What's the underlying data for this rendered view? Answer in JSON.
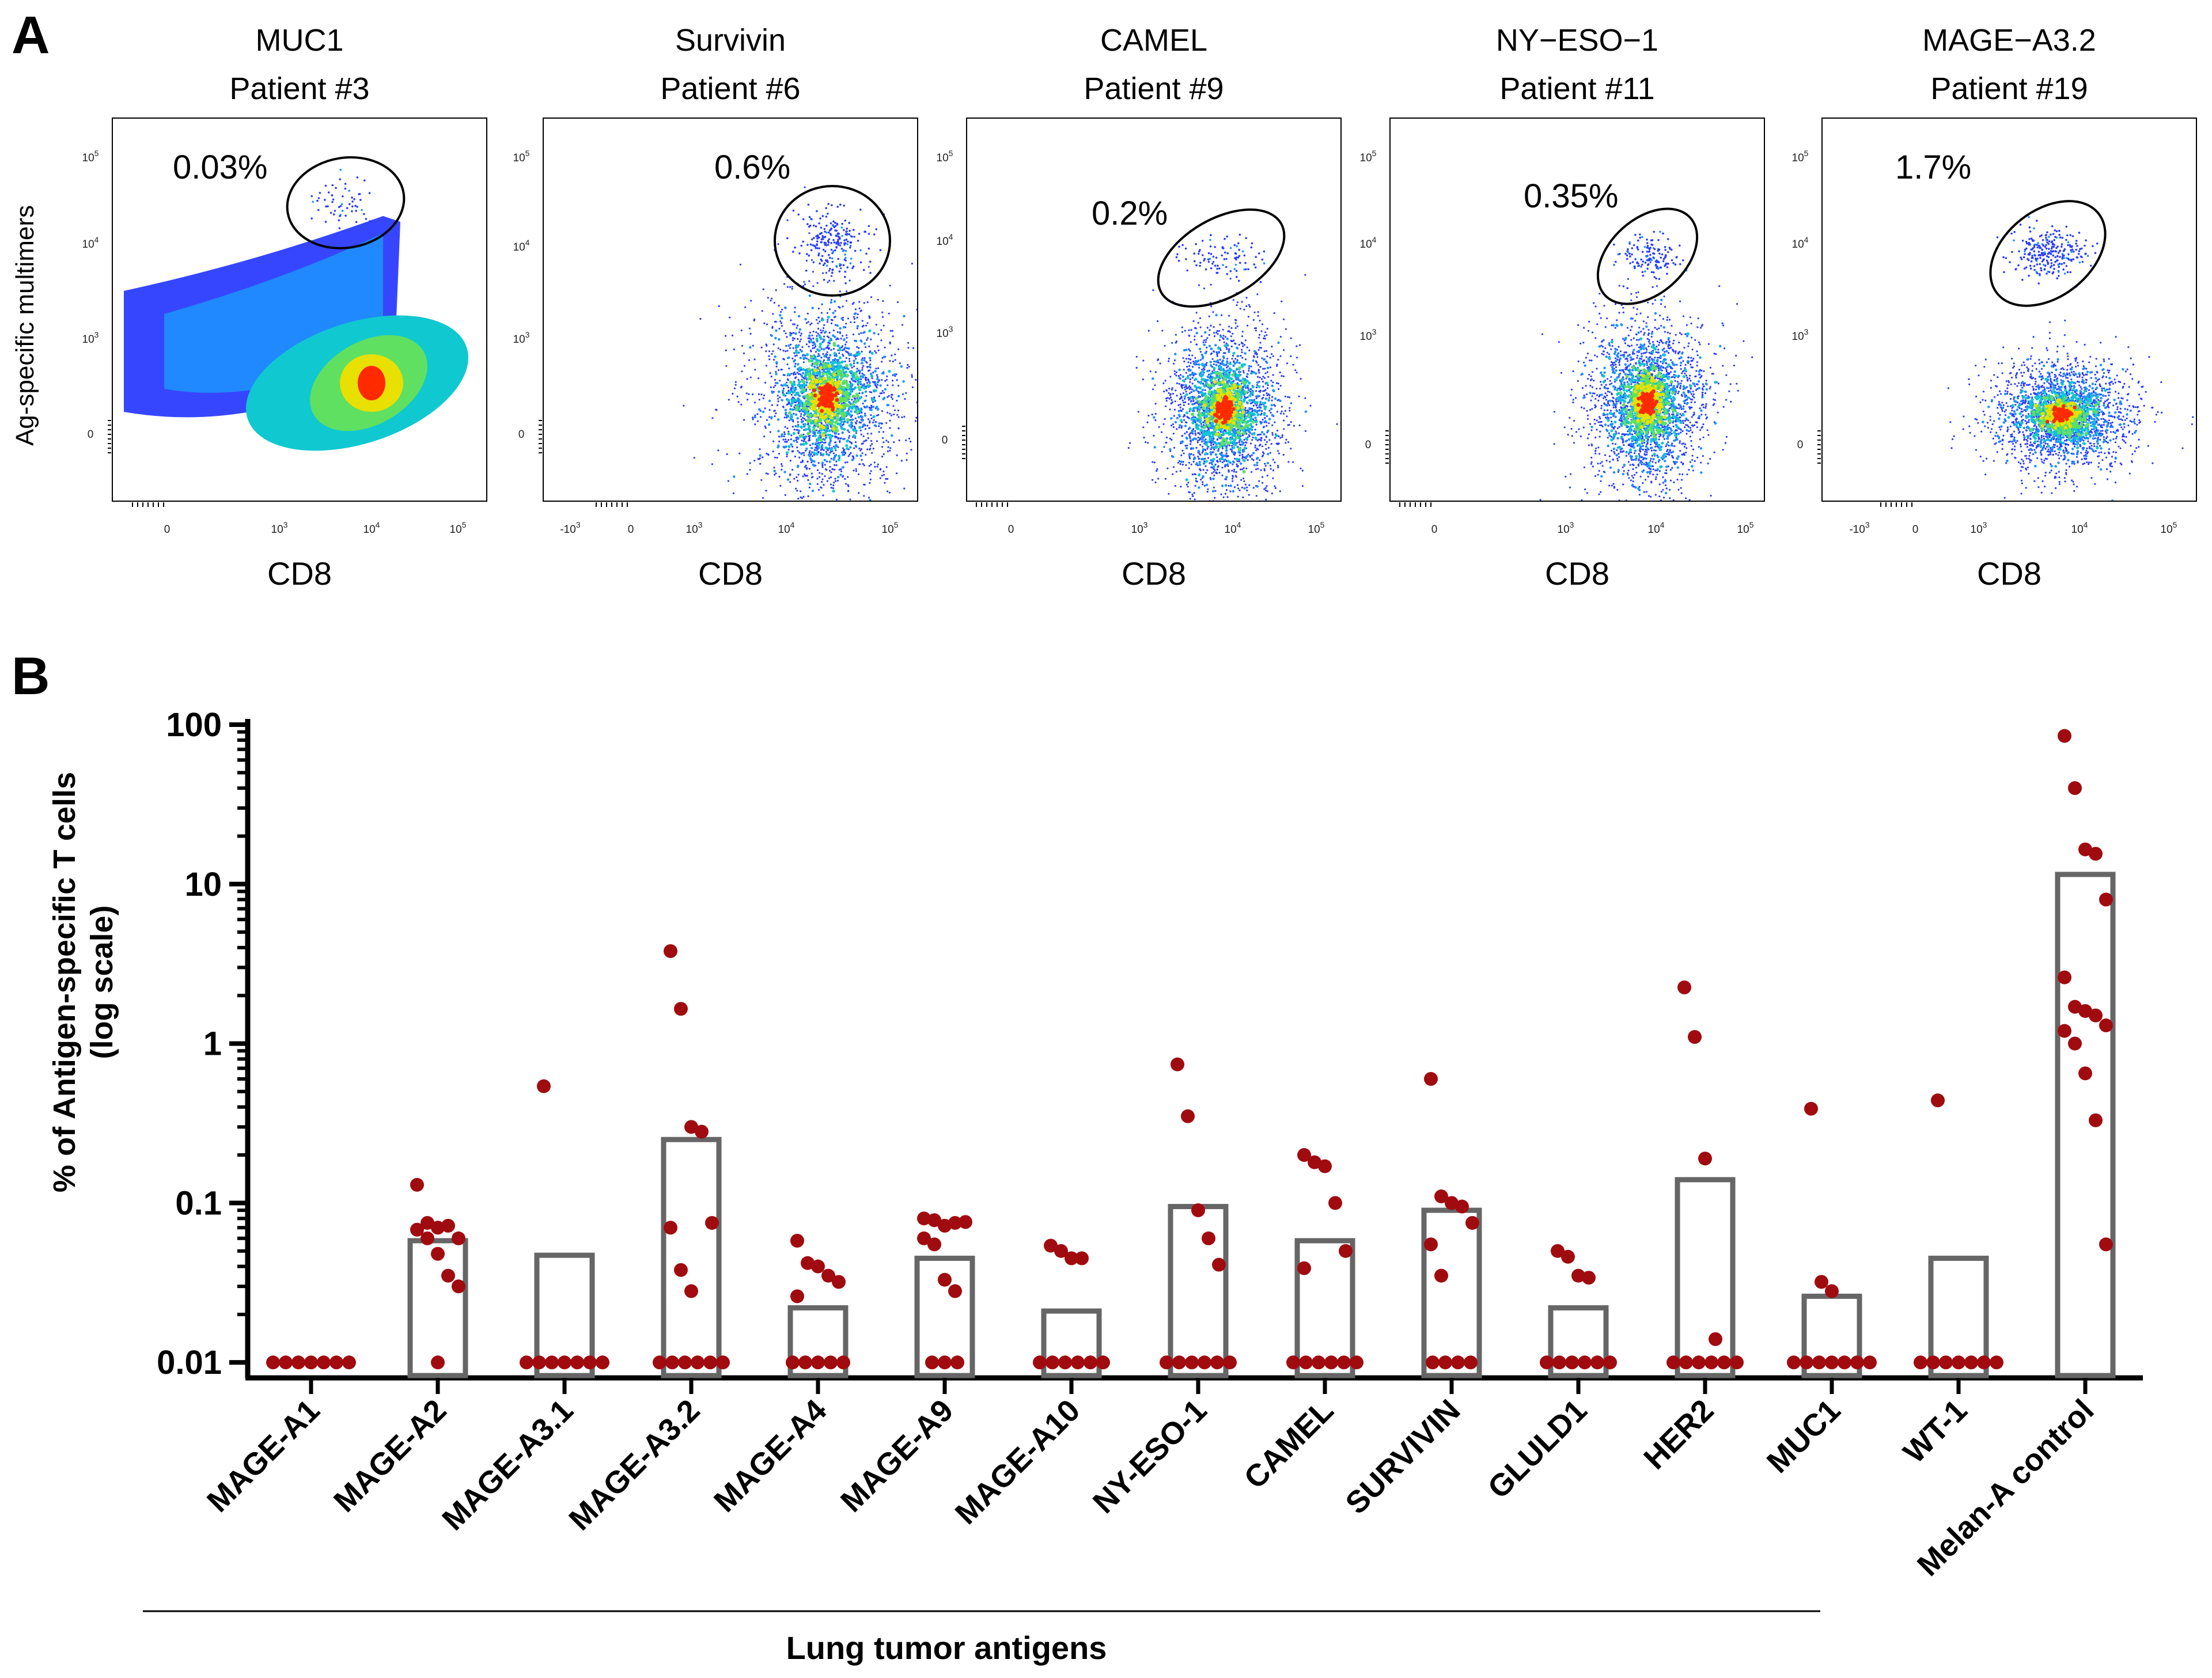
{
  "panel_a": {
    "letter": "A",
    "x_axis_label": "CD8",
    "y_axis_label": "Ag-specific multimers",
    "panels": [
      {
        "antigen": "MUC1",
        "patient": "Patient #3",
        "percent": "0.03%"
      },
      {
        "antigen": "Survivin",
        "patient": "Patient #6",
        "percent": "0.6%"
      },
      {
        "antigen": "CAMEL",
        "patient": "Patient #9",
        "percent": "0.2%"
      },
      {
        "antigen": "NY−ESO−1",
        "patient": "Patient #11",
        "percent": "0.35%"
      },
      {
        "antigen": "MAGE−A3.2",
        "patient": "Patient #19",
        "percent": "1.7%"
      }
    ],
    "tick_labels": {
      "e3": "10",
      "e4": "10",
      "e5": "10",
      "sup3": "3",
      "sup4": "4",
      "sup5": "5",
      "zero": "0",
      "neg": "-10"
    },
    "colors": {
      "low": "#2b3cff",
      "mid": "#10c8d0",
      "high": "#e8e000",
      "peak": "#ff2a00",
      "gate": "#000000"
    }
  },
  "panel_b": {
    "letter": "B",
    "group_label": "Lung tumor antigens"
  },
  "chart_data": {
    "type": "bar",
    "title": "",
    "ylabel_line1": "% of Antigen-specific T cells",
    "ylabel_line2": "(log scale)",
    "xlabel": "",
    "yscale": "log",
    "ylim": [
      0.008,
      100
    ],
    "yticks": [
      0.01,
      0.1,
      1,
      10,
      100
    ],
    "ytick_labels": [
      "0.01",
      "0.1",
      "1",
      "10",
      "100"
    ],
    "categories": [
      "MAGE-A1",
      "MAGE-A2",
      "MAGE-A3.1",
      "MAGE-A3.2",
      "MAGE-A4",
      "MAGE-A9",
      "MAGE-A10",
      "NY-ESO-1",
      "CAMEL",
      "SURVIVIN",
      "GLULD1",
      "HER2",
      "MUC1",
      "WT-1",
      "Melan-A control"
    ],
    "bar_values": [
      0.01,
      0.058,
      0.047,
      0.25,
      0.022,
      0.045,
      0.021,
      0.095,
      0.058,
      0.09,
      0.022,
      0.14,
      0.026,
      0.045,
      11.5
    ],
    "points": [
      [
        0.01,
        0.01,
        0.01,
        0.01,
        0.01,
        0.01,
        0.01
      ],
      [
        0.13,
        0.075,
        0.07,
        0.072,
        0.06,
        0.068,
        0.06,
        0.048,
        0.035,
        0.03,
        0.01
      ],
      [
        0.54,
        0.01,
        0.01,
        0.01,
        0.01,
        0.01,
        0.01,
        0.01
      ],
      [
        3.8,
        1.65,
        0.3,
        0.28,
        0.075,
        0.07,
        0.038,
        0.028,
        0.01,
        0.01,
        0.01,
        0.01,
        0.01,
        0.01
      ],
      [
        0.058,
        0.042,
        0.04,
        0.035,
        0.032,
        0.026,
        0.01,
        0.01,
        0.01,
        0.01,
        0.01
      ],
      [
        0.08,
        0.078,
        0.072,
        0.075,
        0.076,
        0.06,
        0.055,
        0.033,
        0.028,
        0.01,
        0.01,
        0.01
      ],
      [
        0.054,
        0.05,
        0.045,
        0.045,
        0.01,
        0.01,
        0.01,
        0.01,
        0.01,
        0.01
      ],
      [
        0.74,
        0.35,
        0.09,
        0.06,
        0.041,
        0.01,
        0.01,
        0.01,
        0.01,
        0.01,
        0.01
      ],
      [
        0.2,
        0.18,
        0.17,
        0.1,
        0.05,
        0.039,
        0.01,
        0.01,
        0.01,
        0.01,
        0.01,
        0.01
      ],
      [
        0.6,
        0.11,
        0.1,
        0.095,
        0.075,
        0.055,
        0.035,
        0.01,
        0.01,
        0.01,
        0.01
      ],
      [
        0.05,
        0.046,
        0.035,
        0.034,
        0.01,
        0.01,
        0.01,
        0.01,
        0.01,
        0.01
      ],
      [
        2.25,
        1.1,
        0.19,
        0.014,
        0.01,
        0.01,
        0.01,
        0.01,
        0.01,
        0.01
      ],
      [
        0.39,
        0.032,
        0.028,
        0.01,
        0.01,
        0.01,
        0.01,
        0.01,
        0.01,
        0.01
      ],
      [
        0.44,
        0.01,
        0.01,
        0.01,
        0.01,
        0.01,
        0.01,
        0.01
      ],
      [
        85,
        40,
        16.5,
        15.5,
        8.0,
        2.6,
        1.7,
        1.6,
        1.5,
        1.3,
        1.2,
        1.0,
        0.65,
        0.33,
        0.055
      ]
    ],
    "colors": {
      "bar_edge": "#666666",
      "point": "#a00b10",
      "axis": "#000000"
    }
  }
}
